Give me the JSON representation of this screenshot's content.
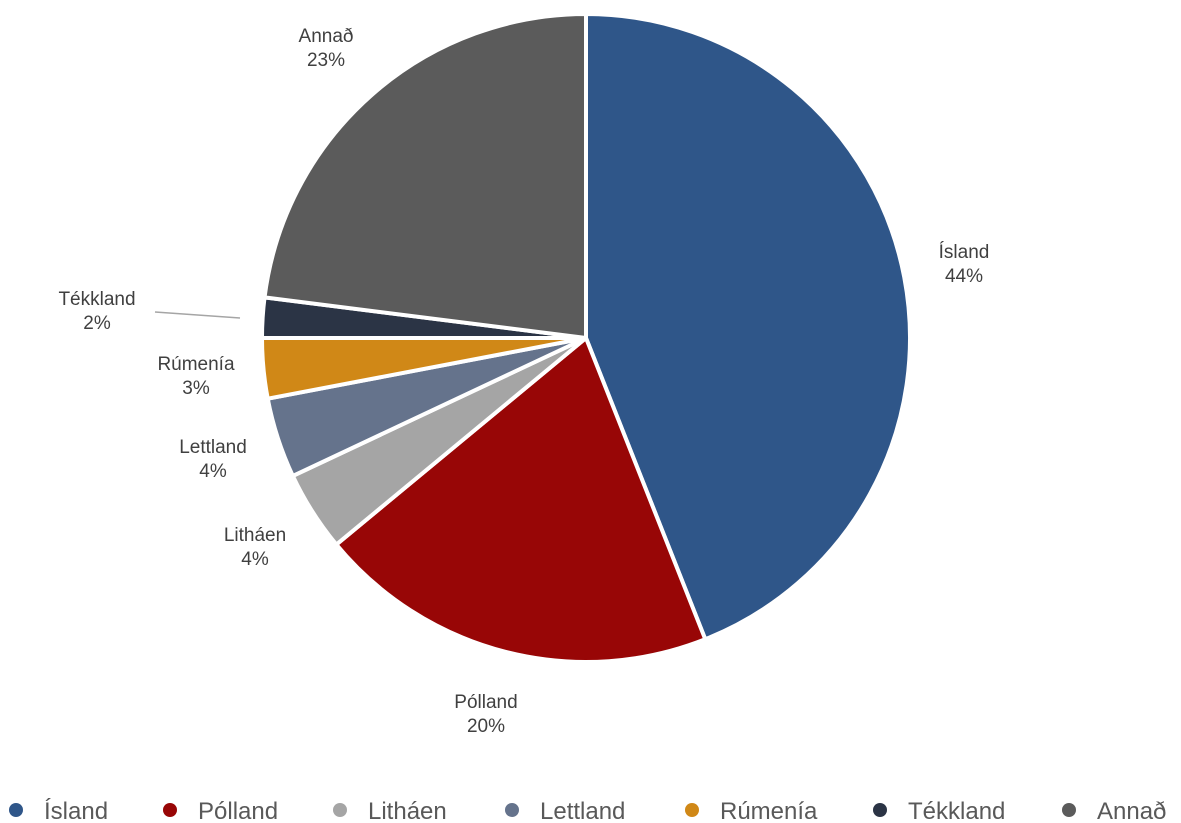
{
  "chart_data": {
    "type": "pie",
    "slices": [
      {
        "name": "Ísland",
        "value": 44,
        "label": "44%",
        "color": "#2F5689"
      },
      {
        "name": "Pólland",
        "value": 20,
        "label": "20%",
        "color": "#980606"
      },
      {
        "name": "Litháen",
        "value": 4,
        "label": "4%",
        "color": "#A5A5A5"
      },
      {
        "name": "Lettland",
        "value": 4,
        "label": "4%",
        "color": "#65738C"
      },
      {
        "name": "Rúmenía",
        "value": 3,
        "label": "3%",
        "color": "#D08817"
      },
      {
        "name": "Tékkland",
        "value": 2,
        "label": "2%",
        "color": "#2B3445"
      },
      {
        "name": "Annað",
        "value": 23,
        "label": "23%",
        "color": "#5B5B5B"
      }
    ],
    "start_angle_deg": 0,
    "direction": "clockwise",
    "legend_position": "bottom"
  }
}
